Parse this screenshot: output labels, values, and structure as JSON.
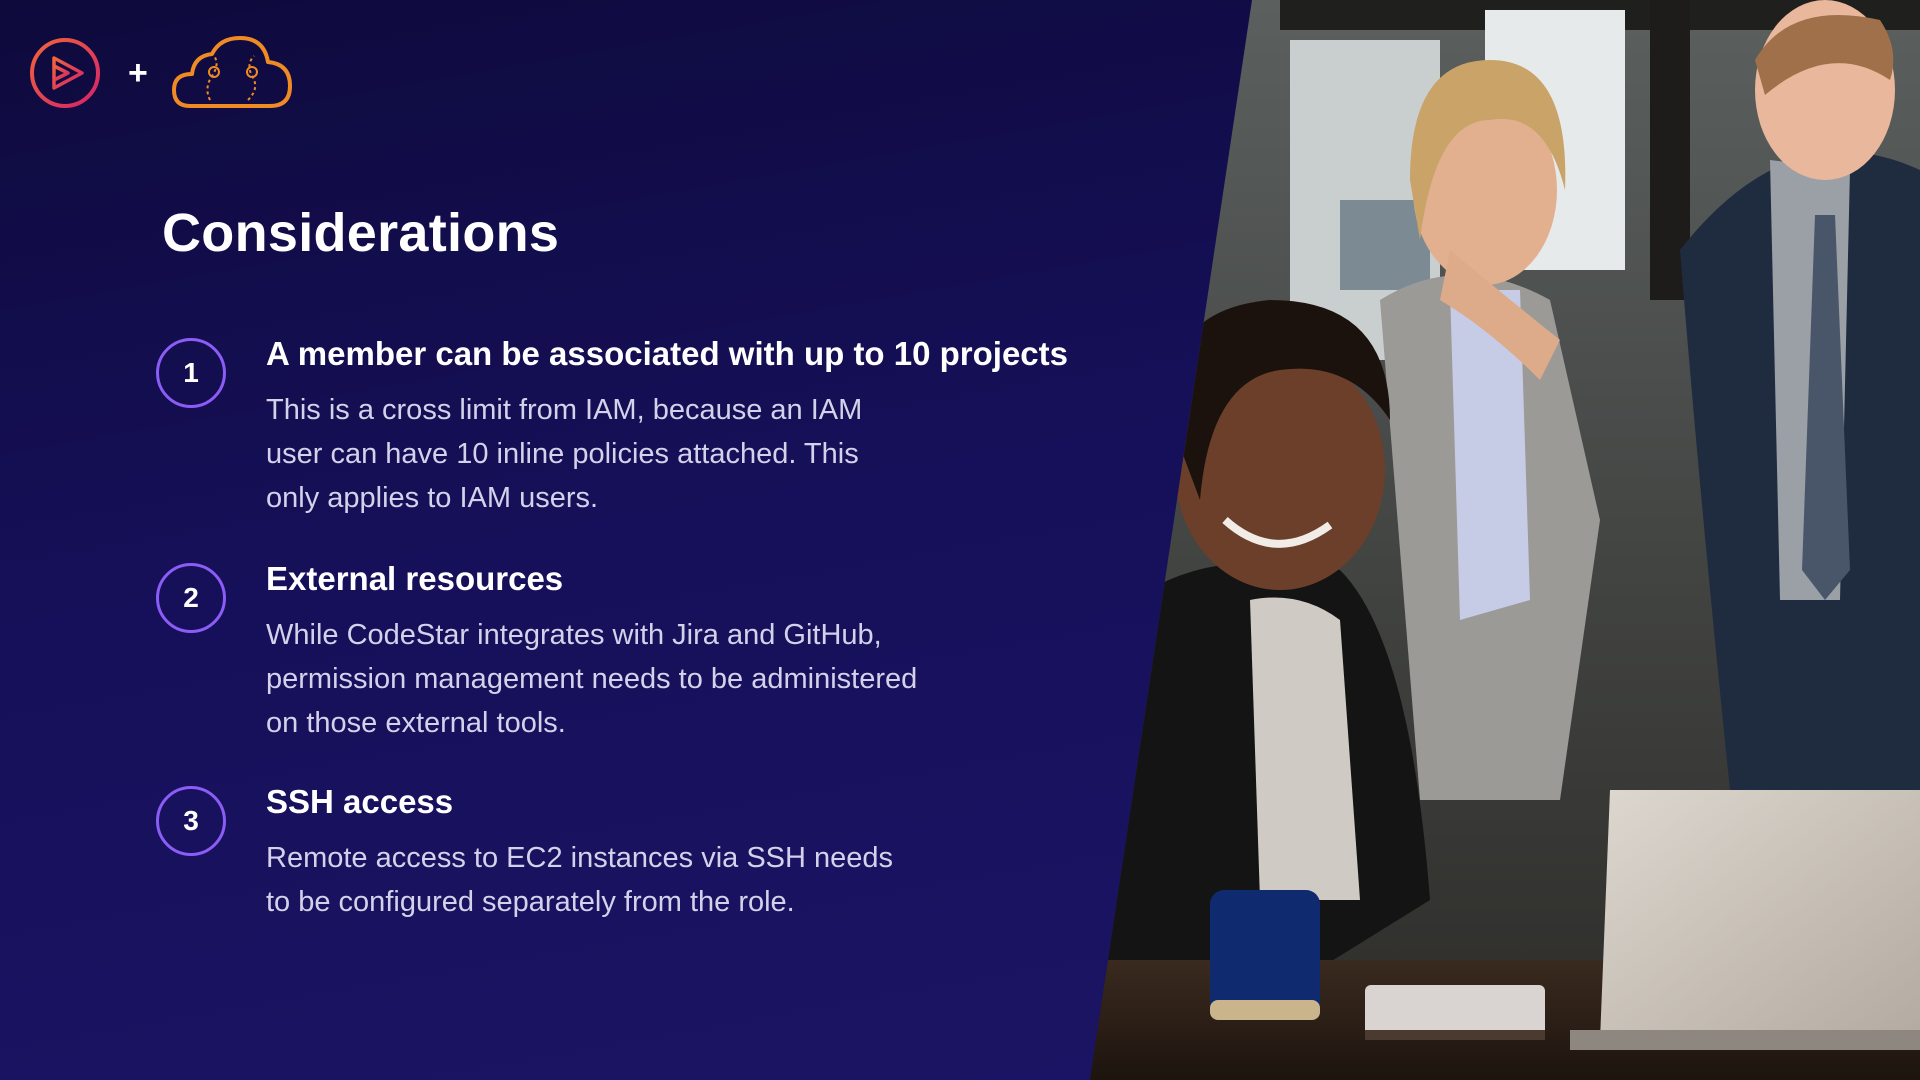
{
  "slide": {
    "title": "Considerations",
    "logos": {
      "left_icon": "play-circle-icon",
      "separator": "+",
      "right_icon": "cloud-icon",
      "accent_colors": [
        "#e63b5a",
        "#f08a24"
      ]
    },
    "items": [
      {
        "number": "1",
        "heading": "A member can be associated with up to 10 projects",
        "lines": [
          "This is a cross limit from IAM, because an IAM",
          "user can have 10 inline policies attached. This",
          "only applies to IAM users."
        ]
      },
      {
        "number": "2",
        "heading": "External resources",
        "lines": [
          "While CodeStar integrates with Jira and GitHub,",
          "permission management needs to be administered",
          "on those external tools."
        ]
      },
      {
        "number": "3",
        "heading": "SSH access",
        "lines": [
          "Remote access to EC2 instances via SSH needs",
          "to be configured separately from the role."
        ]
      }
    ],
    "colors": {
      "background": "#16105a",
      "badge_border": "#8b5cf6",
      "heading_text": "#ffffff",
      "body_text": "#d4d1ea"
    }
  }
}
